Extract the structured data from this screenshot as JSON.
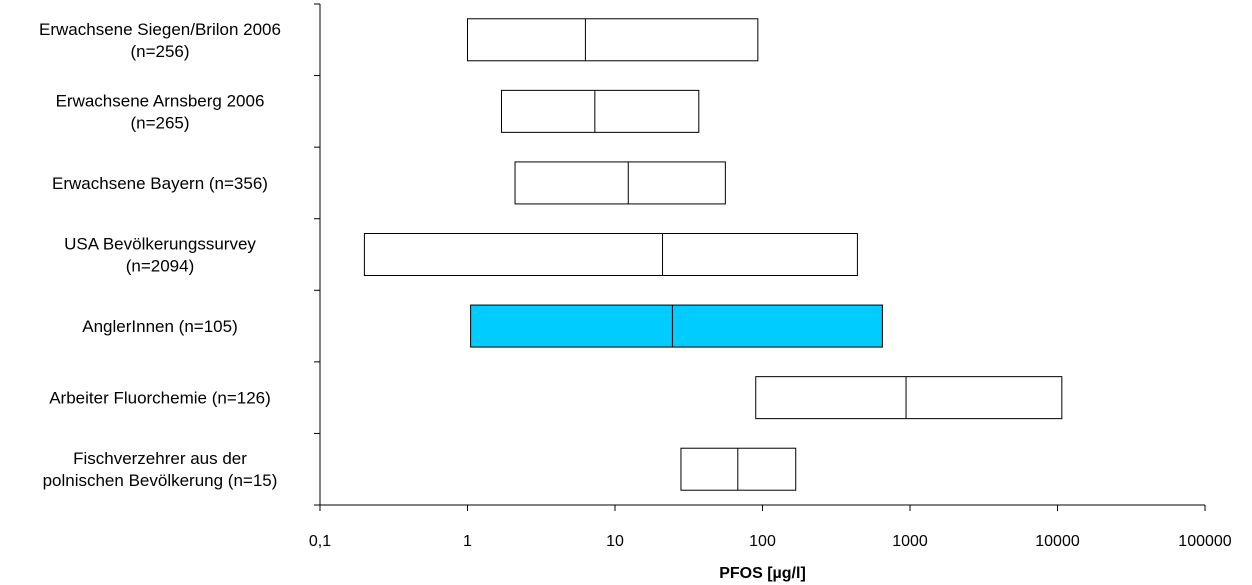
{
  "chart_data": {
    "type": "boxplot",
    "orientation": "horizontal",
    "xscale": "log",
    "xlim": [
      0.1,
      100000
    ],
    "xlabel": "PFOS [µg/l]",
    "x_ticks": [
      0.1,
      1,
      10,
      100,
      1000,
      10000,
      100000
    ],
    "x_tick_labels": [
      "0,1",
      "1",
      "10",
      "100",
      "1000",
      "10000",
      "100000"
    ],
    "grid": false,
    "highlight_color": "#00ccff",
    "box_color": "#ffffff",
    "categories": [
      {
        "label": [
          "Erwachsene Siegen/Brilon 2006",
          "(n=256)"
        ],
        "low": 1.0,
        "median": 6.3,
        "high": 93,
        "highlight": false
      },
      {
        "label": [
          "Erwachsene Arnsberg 2006",
          "(n=265)"
        ],
        "low": 1.7,
        "median": 7.3,
        "high": 37,
        "highlight": false
      },
      {
        "label": [
          "Erwachsene Bayern (n=356)"
        ],
        "low": 2.1,
        "median": 12.3,
        "high": 56,
        "highlight": false
      },
      {
        "label": [
          "USA Bevölkerungssurvey",
          "(n=2094)"
        ],
        "low": 0.2,
        "median": 21,
        "high": 440,
        "highlight": false
      },
      {
        "label": [
          "AnglerInnen (n=105)"
        ],
        "low": 1.05,
        "median": 24.5,
        "high": 650,
        "highlight": true
      },
      {
        "label": [
          "Arbeiter Fluorchemie (n=126)"
        ],
        "low": 90,
        "median": 940,
        "high": 10700,
        "highlight": false
      },
      {
        "label": [
          "Fischverzehrer aus der",
          "polnischen Bevölkerung (n=15)"
        ],
        "low": 28,
        "median": 68,
        "high": 168,
        "highlight": false
      }
    ]
  }
}
